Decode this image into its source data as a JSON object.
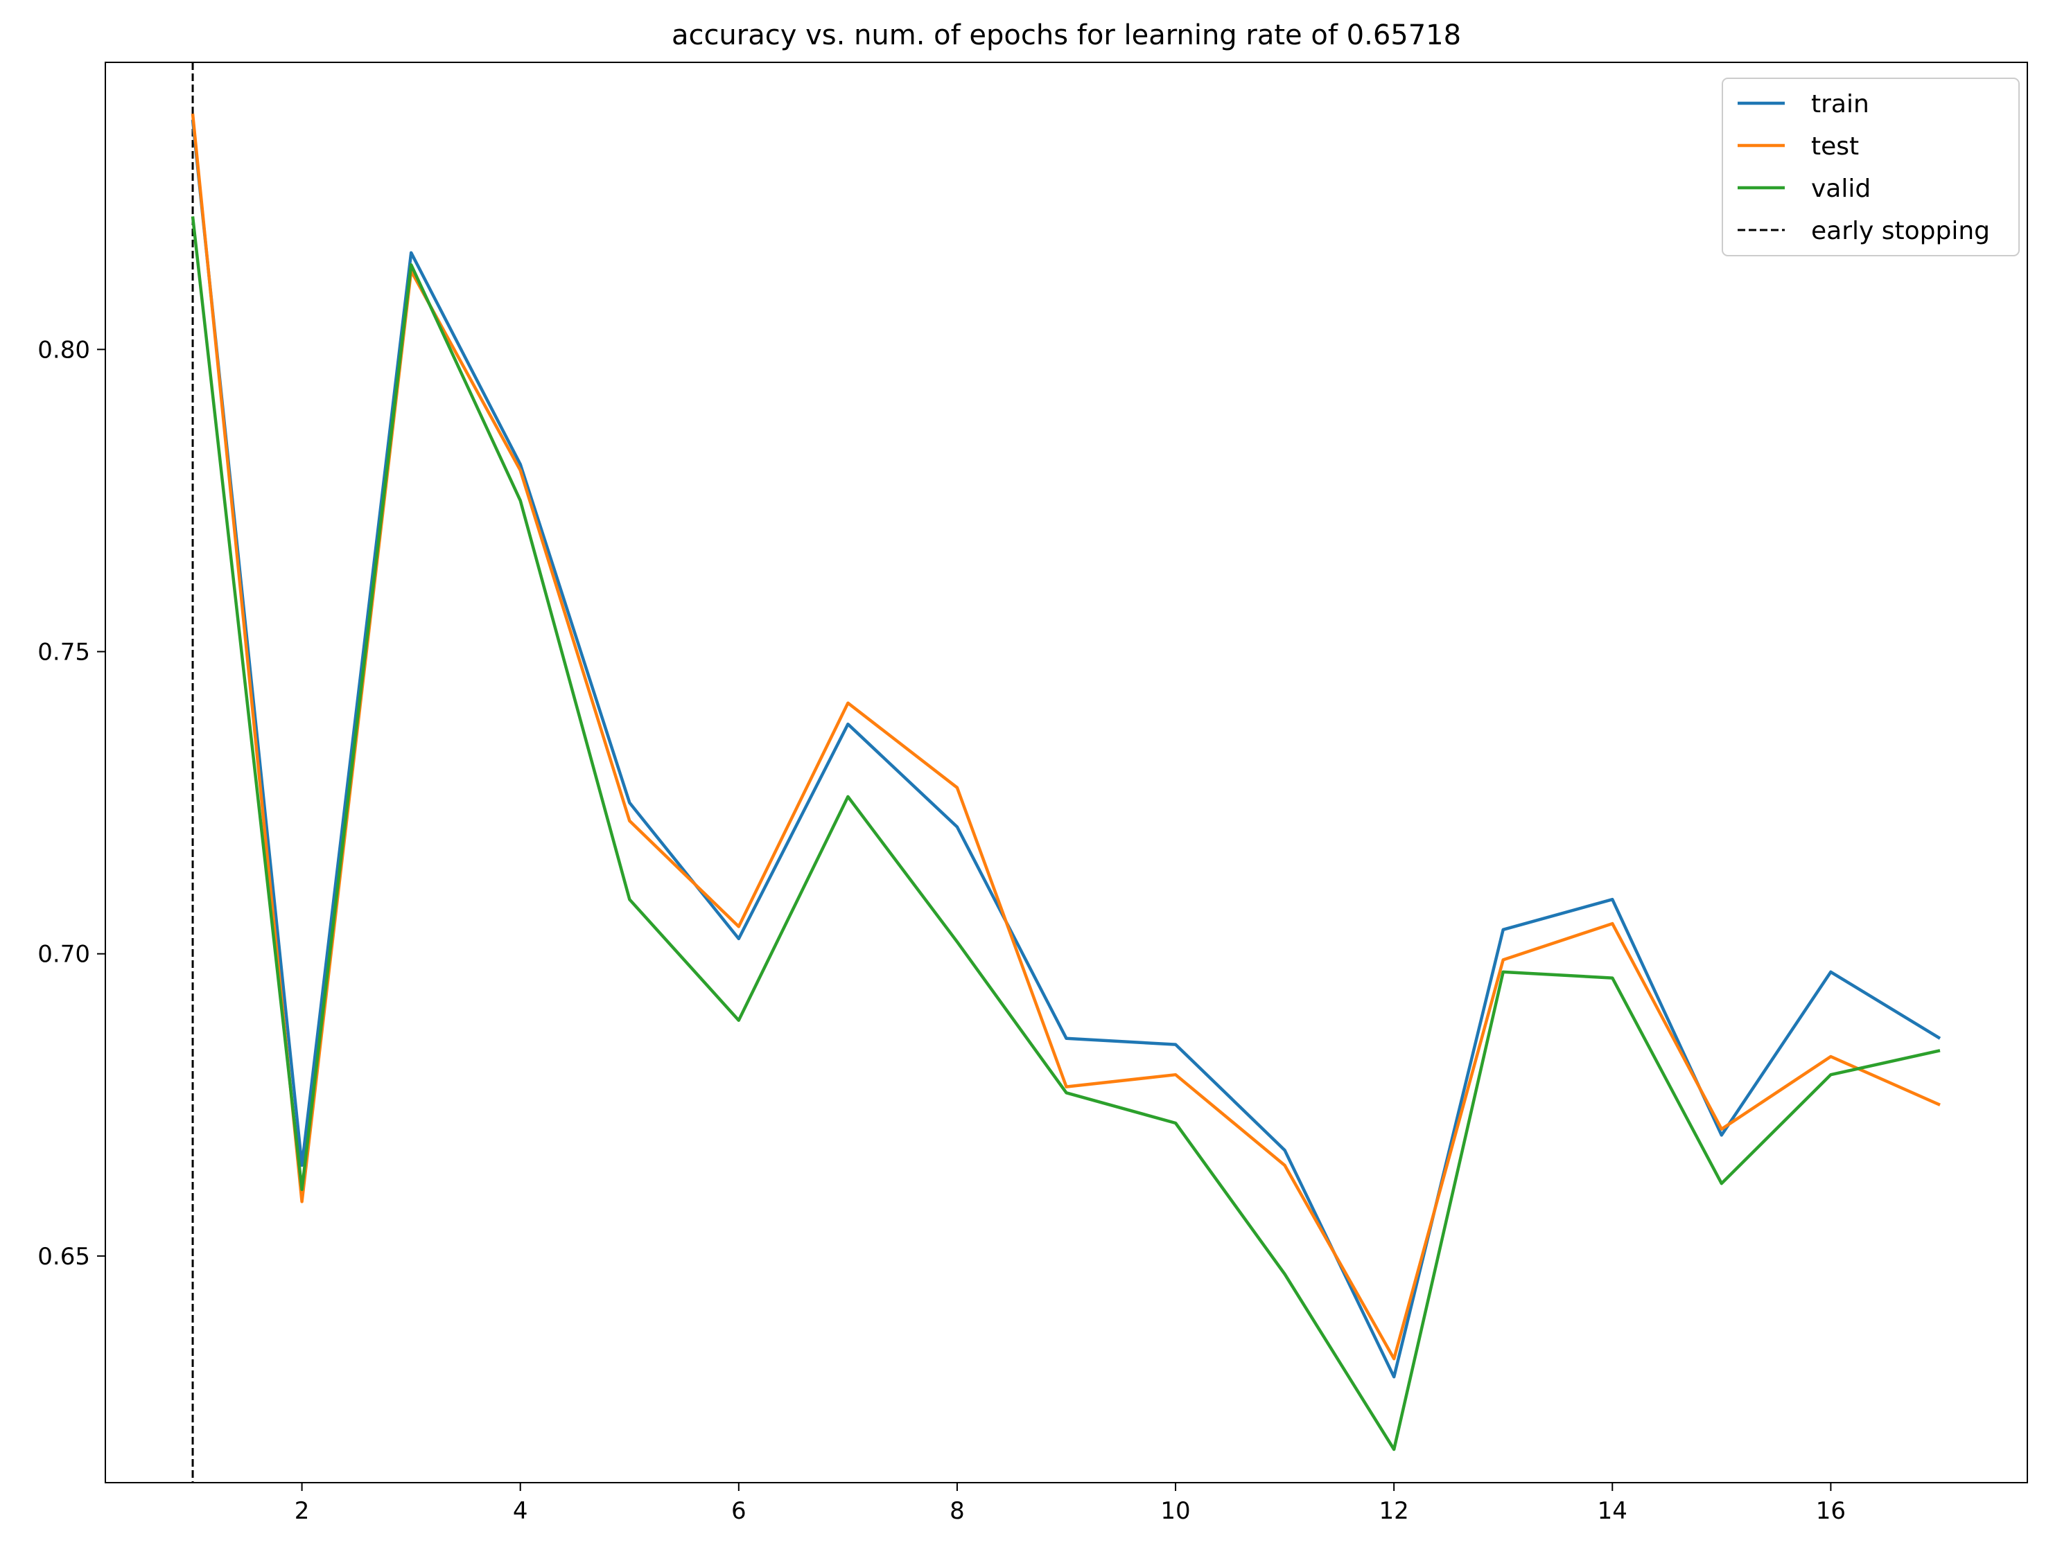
{
  "chart_data": {
    "type": "line",
    "title": "accuracy vs. num. of epochs for learning rate of 0.65718",
    "xlabel": "",
    "ylabel": "",
    "x": [
      1,
      2,
      3,
      4,
      5,
      6,
      7,
      8,
      9,
      10,
      11,
      12,
      13,
      14,
      15,
      16,
      17
    ],
    "xlim": [
      0.2,
      17.8
    ],
    "ylim": [
      0.6125,
      0.8475
    ],
    "xticks": [
      "2",
      "4",
      "6",
      "8",
      "10",
      "12",
      "14",
      "16"
    ],
    "yticks": [
      "0.65",
      "0.70",
      "0.75",
      "0.80"
    ],
    "grid": false,
    "legend_position": "top-right",
    "series": [
      {
        "name": "train",
        "color": "#1f77b4",
        "values": [
          0.838,
          0.665,
          0.816,
          0.781,
          0.725,
          0.7025,
          0.738,
          0.721,
          0.686,
          0.685,
          0.6675,
          0.63,
          0.704,
          0.709,
          0.67,
          0.697,
          0.686
        ]
      },
      {
        "name": "test",
        "color": "#ff7f0e",
        "values": [
          0.839,
          0.659,
          0.813,
          0.78,
          0.722,
          0.7045,
          0.7415,
          0.7275,
          0.678,
          0.68,
          0.665,
          0.633,
          0.699,
          0.705,
          0.671,
          0.683,
          0.675
        ]
      },
      {
        "name": "valid",
        "color": "#2ca02c",
        "values": [
          0.822,
          0.661,
          0.814,
          0.775,
          0.709,
          0.689,
          0.726,
          0.702,
          0.677,
          0.672,
          0.647,
          0.618,
          0.697,
          0.696,
          0.662,
          0.68,
          0.684
        ]
      }
    ],
    "vline": {
      "name": "early stopping",
      "x": 1,
      "color": "#000000",
      "style": "dashed"
    }
  }
}
